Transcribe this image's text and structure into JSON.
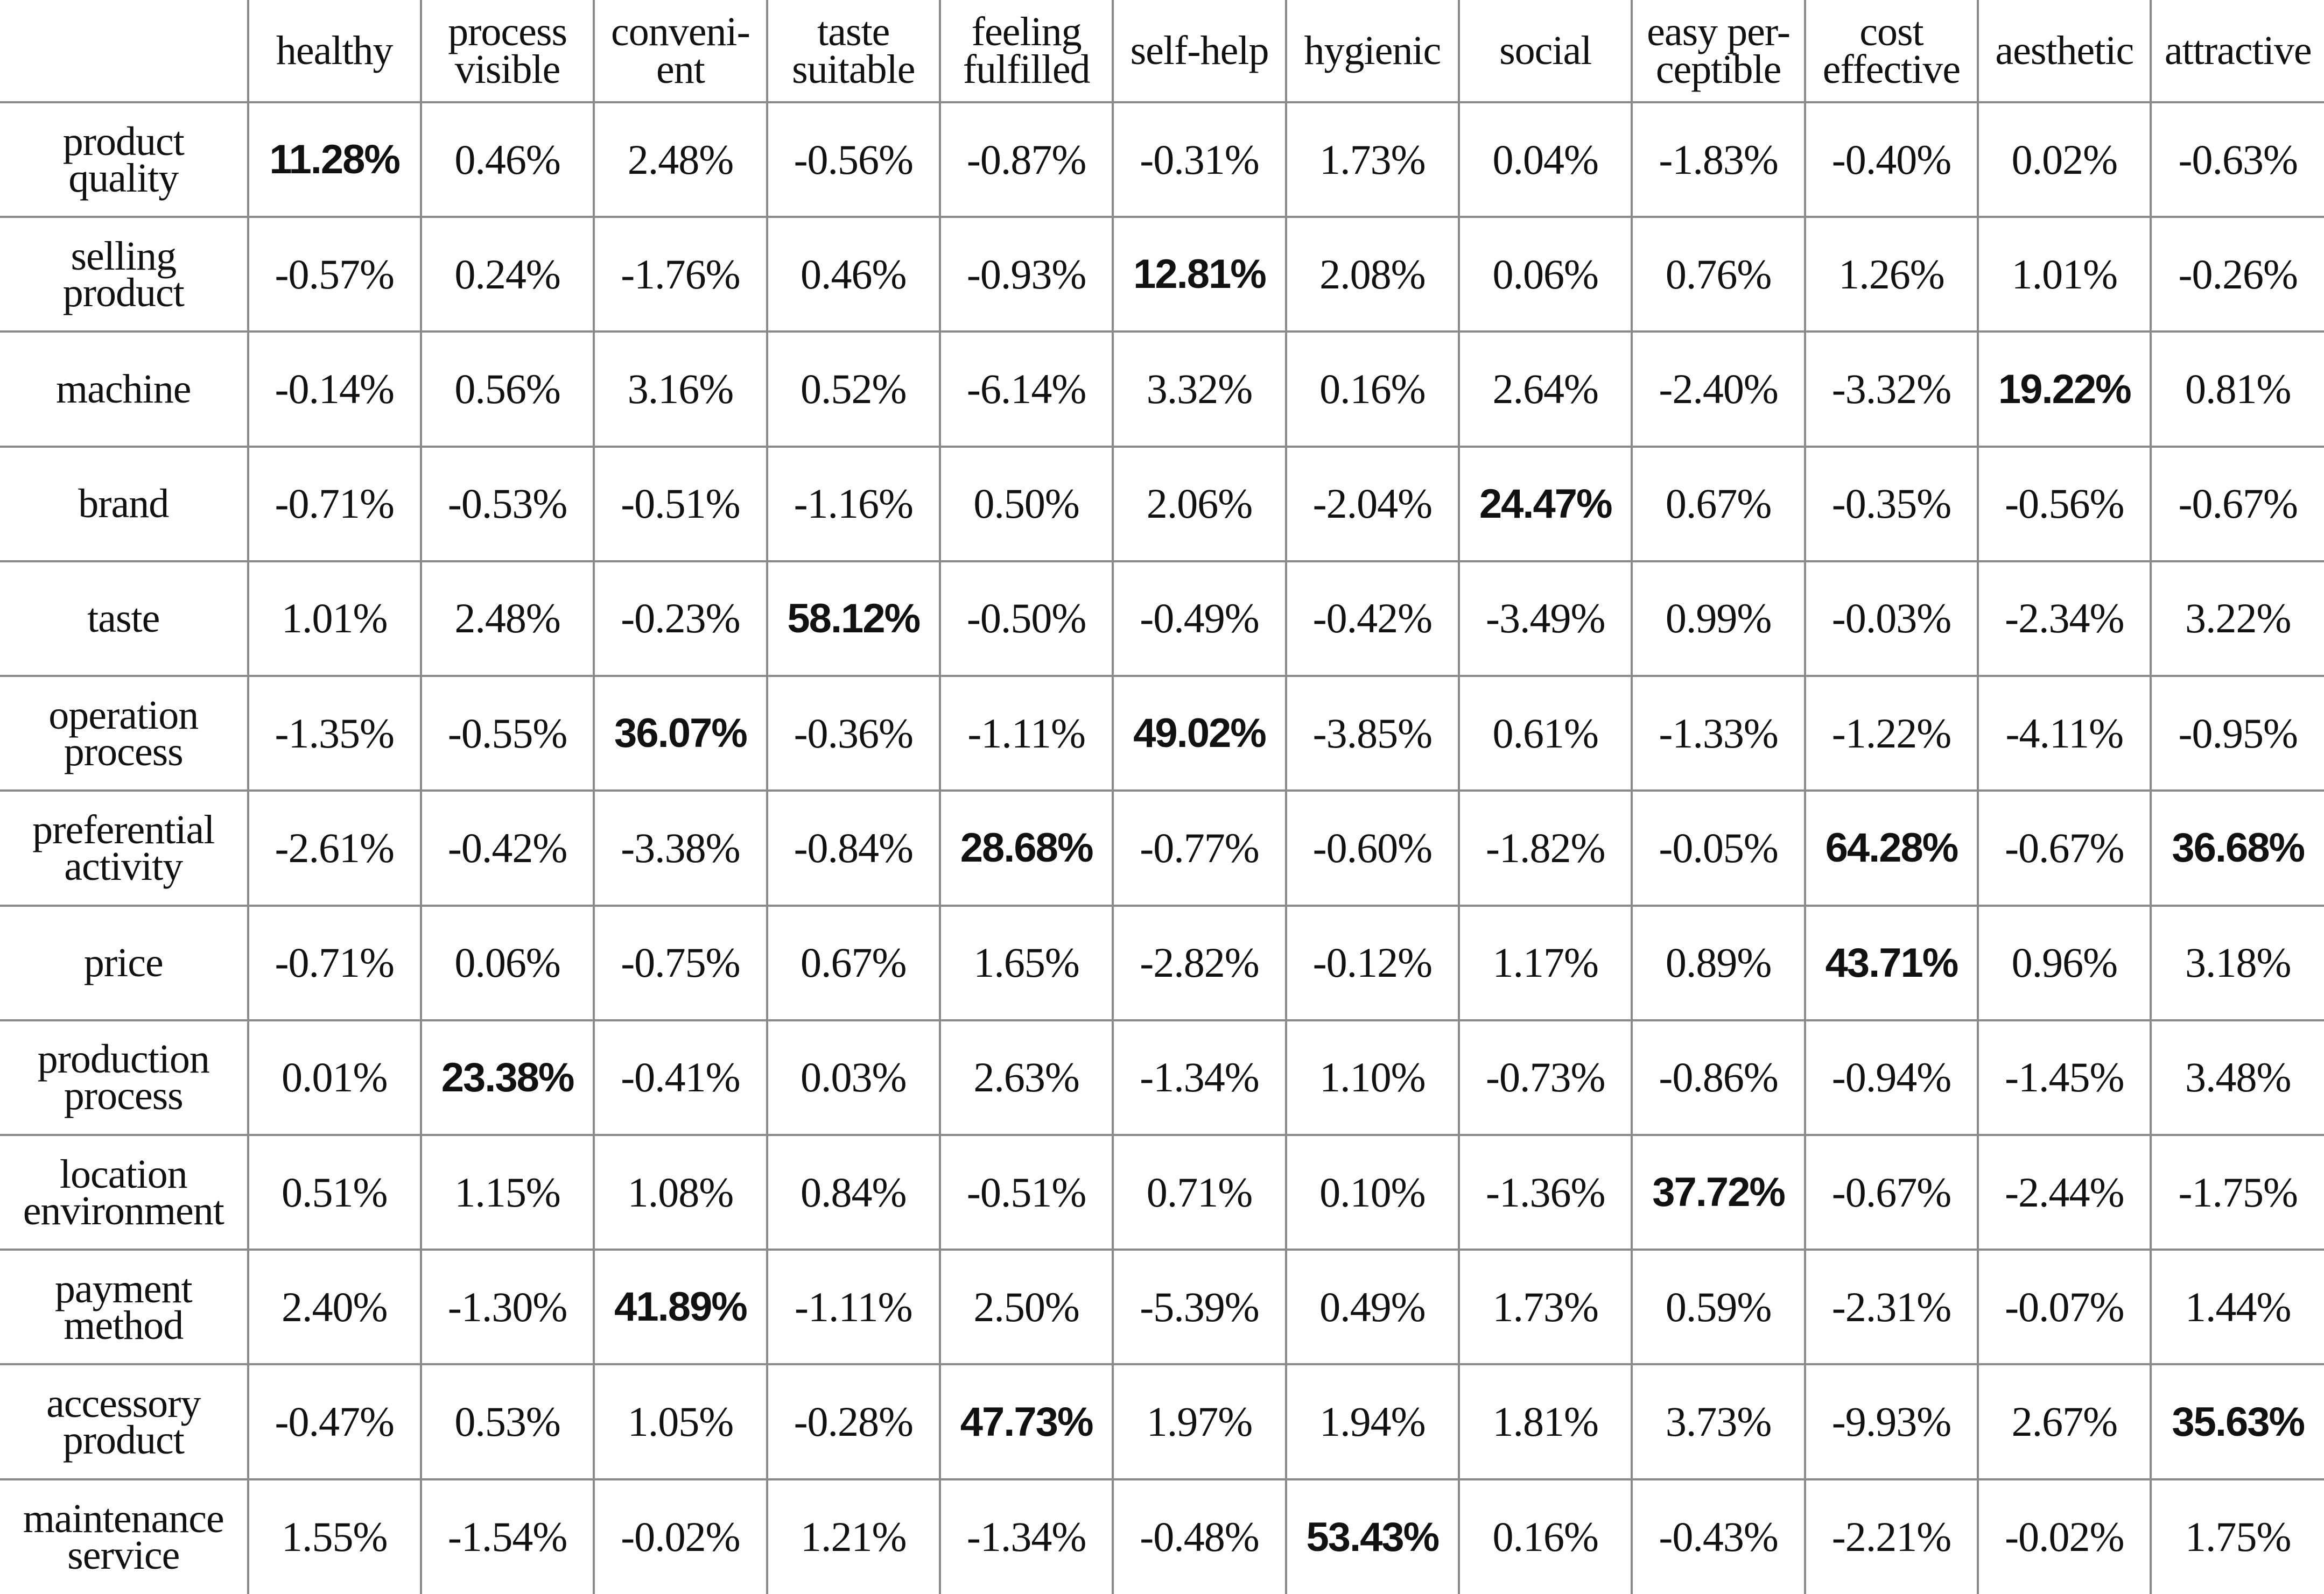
{
  "table": {
    "corner": "",
    "columns": [
      [
        "healthy"
      ],
      [
        "process",
        "visible"
      ],
      [
        "conveni-",
        "ent"
      ],
      [
        "taste",
        "suitable"
      ],
      [
        "feeling",
        "fulfilled"
      ],
      [
        "self-help"
      ],
      [
        "hygienic"
      ],
      [
        "social"
      ],
      [
        "easy per-",
        "ceptible"
      ],
      [
        "cost",
        "effective"
      ],
      [
        "aesthetic"
      ],
      [
        "attractive"
      ]
    ],
    "rows": [
      {
        "label": [
          "product",
          "quality"
        ],
        "values": [
          "11.28%",
          "0.46%",
          "2.48%",
          "-0.56%",
          "-0.87%",
          "-0.31%",
          "1.73%",
          "0.04%",
          "-1.83%",
          "-0.40%",
          "0.02%",
          "-0.63%"
        ],
        "bold": [
          0
        ]
      },
      {
        "label": [
          "selling",
          "product"
        ],
        "values": [
          "-0.57%",
          "0.24%",
          "-1.76%",
          "0.46%",
          "-0.93%",
          "12.81%",
          "2.08%",
          "0.06%",
          "0.76%",
          "1.26%",
          "1.01%",
          "-0.26%"
        ],
        "bold": [
          5
        ]
      },
      {
        "label": [
          "machine"
        ],
        "values": [
          "-0.14%",
          "0.56%",
          "3.16%",
          "0.52%",
          "-6.14%",
          "3.32%",
          "0.16%",
          "2.64%",
          "-2.40%",
          "-3.32%",
          "19.22%",
          "0.81%"
        ],
        "bold": [
          10
        ]
      },
      {
        "label": [
          "brand"
        ],
        "values": [
          "-0.71%",
          "-0.53%",
          "-0.51%",
          "-1.16%",
          "0.50%",
          "2.06%",
          "-2.04%",
          "24.47%",
          "0.67%",
          "-0.35%",
          "-0.56%",
          "-0.67%"
        ],
        "bold": [
          7
        ]
      },
      {
        "label": [
          "taste"
        ],
        "values": [
          "1.01%",
          "2.48%",
          "-0.23%",
          "58.12%",
          "-0.50%",
          "-0.49%",
          "-0.42%",
          "-3.49%",
          "0.99%",
          "-0.03%",
          "-2.34%",
          "3.22%"
        ],
        "bold": [
          3
        ]
      },
      {
        "label": [
          "operation",
          "process"
        ],
        "values": [
          "-1.35%",
          "-0.55%",
          "36.07%",
          "-0.36%",
          "-1.11%",
          "49.02%",
          "-3.85%",
          "0.61%",
          "-1.33%",
          "-1.22%",
          "-4.11%",
          "-0.95%"
        ],
        "bold": [
          2,
          5
        ]
      },
      {
        "label": [
          "preferential",
          "activity"
        ],
        "values": [
          "-2.61%",
          "-0.42%",
          "-3.38%",
          "-0.84%",
          "28.68%",
          "-0.77%",
          "-0.60%",
          "-1.82%",
          "-0.05%",
          "64.28%",
          "-0.67%",
          "36.68%"
        ],
        "bold": [
          4,
          9,
          11
        ]
      },
      {
        "label": [
          "price"
        ],
        "values": [
          "-0.71%",
          "0.06%",
          "-0.75%",
          "0.67%",
          "1.65%",
          "-2.82%",
          "-0.12%",
          "1.17%",
          "0.89%",
          "43.71%",
          "0.96%",
          "3.18%"
        ],
        "bold": [
          9
        ]
      },
      {
        "label": [
          "production",
          "process"
        ],
        "values": [
          "0.01%",
          "23.38%",
          "-0.41%",
          "0.03%",
          "2.63%",
          "-1.34%",
          "1.10%",
          "-0.73%",
          "-0.86%",
          "-0.94%",
          "-1.45%",
          "3.48%"
        ],
        "bold": [
          1
        ]
      },
      {
        "label": [
          "location",
          "environment"
        ],
        "values": [
          "0.51%",
          "1.15%",
          "1.08%",
          "0.84%",
          "-0.51%",
          "0.71%",
          "0.10%",
          "-1.36%",
          "37.72%",
          "-0.67%",
          "-2.44%",
          "-1.75%"
        ],
        "bold": [
          8
        ]
      },
      {
        "label": [
          "payment",
          "method"
        ],
        "values": [
          "2.40%",
          "-1.30%",
          "41.89%",
          "-1.11%",
          "2.50%",
          "-5.39%",
          "0.49%",
          "1.73%",
          "0.59%",
          "-2.31%",
          "-0.07%",
          "1.44%"
        ],
        "bold": [
          2
        ]
      },
      {
        "label": [
          "accessory",
          "product"
        ],
        "values": [
          "-0.47%",
          "0.53%",
          "1.05%",
          "-0.28%",
          "47.73%",
          "1.97%",
          "1.94%",
          "1.81%",
          "3.73%",
          "-9.93%",
          "2.67%",
          "35.63%"
        ],
        "bold": [
          4,
          11
        ]
      },
      {
        "label": [
          "maintenance",
          "service"
        ],
        "values": [
          "1.55%",
          "-1.54%",
          "-0.02%",
          "1.21%",
          "-1.34%",
          "-0.48%",
          "53.43%",
          "0.16%",
          "-0.43%",
          "-2.21%",
          "-0.02%",
          "1.75%"
        ],
        "bold": [
          6
        ]
      }
    ]
  }
}
